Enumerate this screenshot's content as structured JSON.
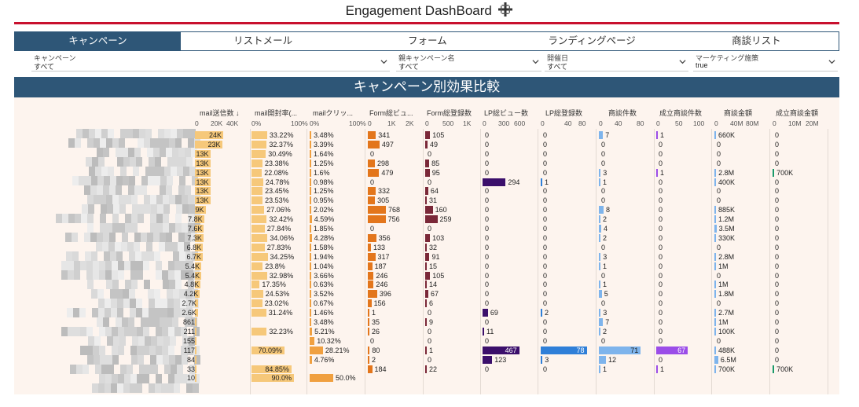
{
  "title": "Engagement DashBoard",
  "title_icon": "tableau-plus-icon",
  "tabs": [
    {
      "label": "キャンペーン",
      "active": true
    },
    {
      "label": "リストメール",
      "active": false
    },
    {
      "label": "フォーム",
      "active": false
    },
    {
      "label": "ランディングページ",
      "active": false
    },
    {
      "label": "商談リスト",
      "active": false
    }
  ],
  "filters": [
    {
      "label": "キャンペーン",
      "value": "すべて"
    },
    {
      "label": "親キャンペーン名",
      "value": "すべて"
    },
    {
      "label": "開催日",
      "value": "すべて"
    },
    {
      "label": "マーケティング施策",
      "value": "true"
    }
  ],
  "section_title": "キャンペーン別効果比較",
  "colors": {
    "header_bg": "#2e5677",
    "accent_red": "#c8102e",
    "panel_bg": "#fdf4ee",
    "bar_light": "#f6c87a",
    "bar_orange": "#f0a040",
    "bar_dark_orange": "#e3761c",
    "bar_maroon": "#7a2838",
    "bar_purple": "#3b0f6b",
    "bar_blue": "#2f7fd8",
    "bar_light_blue": "#7eb4ec",
    "bar_violet": "#9b4de8",
    "bar_green": "#1a9a6a"
  },
  "columns": [
    {
      "label": "mail送信数 ↓",
      "ticks": [
        "0",
        "20K",
        "40K"
      ]
    },
    {
      "label": "mail開封率(...",
      "ticks": [
        "0%",
        "100%"
      ]
    },
    {
      "label": "mailクリッ...",
      "ticks": [
        "0%",
        "100%"
      ]
    },
    {
      "label": "Form総ビュ...",
      "ticks": [
        "0",
        "1K",
        "2K"
      ]
    },
    {
      "label": "Form総登録数",
      "ticks": [
        "0",
        "500",
        "1K"
      ]
    },
    {
      "label": "LP総ビュー数",
      "ticks": [
        "0",
        "300",
        "600"
      ]
    },
    {
      "label": "LP総登録数",
      "ticks": [
        "0",
        "40",
        "80"
      ]
    },
    {
      "label": "商談件数",
      "ticks": [
        "0",
        "40",
        "80"
      ]
    },
    {
      "label": "成立商談件数",
      "ticks": [
        "0",
        "50",
        "100"
      ]
    },
    {
      "label": "商談金額",
      "ticks": [
        "0",
        "40M",
        "80M"
      ]
    },
    {
      "label": "成立商談金額",
      "ticks": [
        "0",
        "10M",
        "20M"
      ]
    }
  ],
  "rows": [
    {
      "mail_sent": "24K",
      "open": "33.22%",
      "click": "3.48%",
      "form_views": "341",
      "form_reg": "105",
      "lp_views": "0",
      "lp_reg": "0",
      "deals": "7",
      "won_deals": "1",
      "deal_amt": "660K",
      "won_amt": "0"
    },
    {
      "mail_sent": "23K",
      "open": "32.37%",
      "click": "3.39%",
      "form_views": "497",
      "form_reg": "49",
      "lp_views": "0",
      "lp_reg": "0",
      "deals": "0",
      "won_deals": "0",
      "deal_amt": "0",
      "won_amt": "0"
    },
    {
      "mail_sent": "13K",
      "open": "30.49%",
      "click": "1.64%",
      "form_views": "0",
      "form_reg": "0",
      "lp_views": "0",
      "lp_reg": "0",
      "deals": "0",
      "won_deals": "0",
      "deal_amt": "0",
      "won_amt": "0"
    },
    {
      "mail_sent": "13K",
      "open": "23.38%",
      "click": "1.25%",
      "form_views": "298",
      "form_reg": "85",
      "lp_views": "0",
      "lp_reg": "0",
      "deals": "0",
      "won_deals": "0",
      "deal_amt": "0",
      "won_amt": "0"
    },
    {
      "mail_sent": "13K",
      "open": "22.08%",
      "click": "1.6%",
      "form_views": "479",
      "form_reg": "95",
      "lp_views": "0",
      "lp_reg": "0",
      "deals": "3",
      "won_deals": "1",
      "deal_amt": "2.8M",
      "won_amt": "700K"
    },
    {
      "mail_sent": "13K",
      "open": "24.78%",
      "click": "0.98%",
      "form_views": "0",
      "form_reg": "0",
      "lp_views": "294",
      "lp_reg": "1",
      "deals": "1",
      "won_deals": "0",
      "deal_amt": "400K",
      "won_amt": "0"
    },
    {
      "mail_sent": "13K",
      "open": "23.45%",
      "click": "1.25%",
      "form_views": "332",
      "form_reg": "64",
      "lp_views": "0",
      "lp_reg": "0",
      "deals": "0",
      "won_deals": "0",
      "deal_amt": "0",
      "won_amt": "0"
    },
    {
      "mail_sent": "13K",
      "open": "23.53%",
      "click": "0.95%",
      "form_views": "305",
      "form_reg": "31",
      "lp_views": "0",
      "lp_reg": "0",
      "deals": "0",
      "won_deals": "0",
      "deal_amt": "0",
      "won_amt": "0"
    },
    {
      "mail_sent": "9K",
      "open": "27.06%",
      "click": "2.02%",
      "form_views": "768",
      "form_reg": "160",
      "lp_views": "0",
      "lp_reg": "0",
      "deals": "8",
      "won_deals": "0",
      "deal_amt": "885K",
      "won_amt": "0"
    },
    {
      "mail_sent": "7.8K",
      "open": "32.42%",
      "click": "4.59%",
      "form_views": "756",
      "form_reg": "259",
      "lp_views": "0",
      "lp_reg": "0",
      "deals": "2",
      "won_deals": "0",
      "deal_amt": "1.2M",
      "won_amt": "0"
    },
    {
      "mail_sent": "7.6K",
      "open": "27.84%",
      "click": "1.85%",
      "form_views": "0",
      "form_reg": "0",
      "lp_views": "0",
      "lp_reg": "0",
      "deals": "4",
      "won_deals": "0",
      "deal_amt": "3.5M",
      "won_amt": "0"
    },
    {
      "mail_sent": "7.3K",
      "open": "34.06%",
      "click": "4.28%",
      "form_views": "356",
      "form_reg": "103",
      "lp_views": "0",
      "lp_reg": "0",
      "deals": "2",
      "won_deals": "0",
      "deal_amt": "330K",
      "won_amt": "0"
    },
    {
      "mail_sent": "6.8K",
      "open": "27.83%",
      "click": "1.58%",
      "form_views": "133",
      "form_reg": "32",
      "lp_views": "0",
      "lp_reg": "0",
      "deals": "0",
      "won_deals": "0",
      "deal_amt": "0",
      "won_amt": "0"
    },
    {
      "mail_sent": "6.7K",
      "open": "34.25%",
      "click": "1.94%",
      "form_views": "317",
      "form_reg": "91",
      "lp_views": "0",
      "lp_reg": "0",
      "deals": "3",
      "won_deals": "0",
      "deal_amt": "2.8M",
      "won_amt": "0"
    },
    {
      "mail_sent": "5.4K",
      "open": "23.8%",
      "click": "1.04%",
      "form_views": "187",
      "form_reg": "15",
      "lp_views": "0",
      "lp_reg": "0",
      "deals": "1",
      "won_deals": "0",
      "deal_amt": "1M",
      "won_amt": "0"
    },
    {
      "mail_sent": "5.4K",
      "open": "32.98%",
      "click": "3.66%",
      "form_views": "246",
      "form_reg": "105",
      "lp_views": "0",
      "lp_reg": "0",
      "deals": "0",
      "won_deals": "0",
      "deal_amt": "0",
      "won_amt": "0"
    },
    {
      "mail_sent": "4.8K",
      "open": "17.35%",
      "click": "0.63%",
      "form_views": "246",
      "form_reg": "14",
      "lp_views": "0",
      "lp_reg": "0",
      "deals": "1",
      "won_deals": "0",
      "deal_amt": "1M",
      "won_amt": "0"
    },
    {
      "mail_sent": "4.2K",
      "open": "24.53%",
      "click": "3.52%",
      "form_views": "396",
      "form_reg": "67",
      "lp_views": "0",
      "lp_reg": "0",
      "deals": "5",
      "won_deals": "0",
      "deal_amt": "1.8M",
      "won_amt": "0"
    },
    {
      "mail_sent": "2.7K",
      "open": "23.02%",
      "click": "0.67%",
      "form_views": "156",
      "form_reg": "6",
      "lp_views": "0",
      "lp_reg": "0",
      "deals": "0",
      "won_deals": "0",
      "deal_amt": "0",
      "won_amt": "0"
    },
    {
      "mail_sent": "2.6K",
      "open": "31.24%",
      "click": "1.46%",
      "form_views": "1",
      "form_reg": "0",
      "lp_views": "69",
      "lp_reg": "2",
      "deals": "3",
      "won_deals": "0",
      "deal_amt": "2.7M",
      "won_amt": "0"
    },
    {
      "mail_sent": "861",
      "open": "",
      "click": "3.48%",
      "form_views": "35",
      "form_reg": "9",
      "lp_views": "0",
      "lp_reg": "0",
      "deals": "7",
      "won_deals": "0",
      "deal_amt": "1M",
      "won_amt": "0"
    },
    {
      "mail_sent": "211",
      "open": "32.23%",
      "click": "5.21%",
      "form_views": "26",
      "form_reg": "0",
      "lp_views": "11",
      "lp_reg": "0",
      "deals": "2",
      "won_deals": "0",
      "deal_amt": "100K",
      "won_amt": "0"
    },
    {
      "mail_sent": "155",
      "open": "",
      "click": "10.32%",
      "form_views": "0",
      "form_reg": "0",
      "lp_views": "0",
      "lp_reg": "0",
      "deals": "0",
      "won_deals": "0",
      "deal_amt": "0",
      "won_amt": "0"
    },
    {
      "mail_sent": "117",
      "open": "70.09%",
      "click": "28.21%",
      "form_views": "80",
      "form_reg": "1",
      "lp_views": "467",
      "lp_reg": "78",
      "deals": "71",
      "won_deals": "67",
      "deal_amt": "488K",
      "won_amt": "0"
    },
    {
      "mail_sent": "84",
      "open": "",
      "click": "4.76%",
      "form_views": "2",
      "form_reg": "0",
      "lp_views": "123",
      "lp_reg": "3",
      "deals": "12",
      "won_deals": "0",
      "deal_amt": "6.5M",
      "won_amt": "0"
    },
    {
      "mail_sent": "33",
      "open": "84.85%",
      "click": "",
      "form_views": "184",
      "form_reg": "22",
      "lp_views": "0",
      "lp_reg": "0",
      "deals": "1",
      "won_deals": "1",
      "deal_amt": "700K",
      "won_amt": "700K"
    },
    {
      "mail_sent": "10",
      "open": "90.0%",
      "click": "50.0%",
      "form_views": "",
      "form_reg": "",
      "lp_views": "",
      "lp_reg": "",
      "deals": "",
      "won_deals": "",
      "deal_amt": "",
      "won_amt": ""
    }
  ]
}
